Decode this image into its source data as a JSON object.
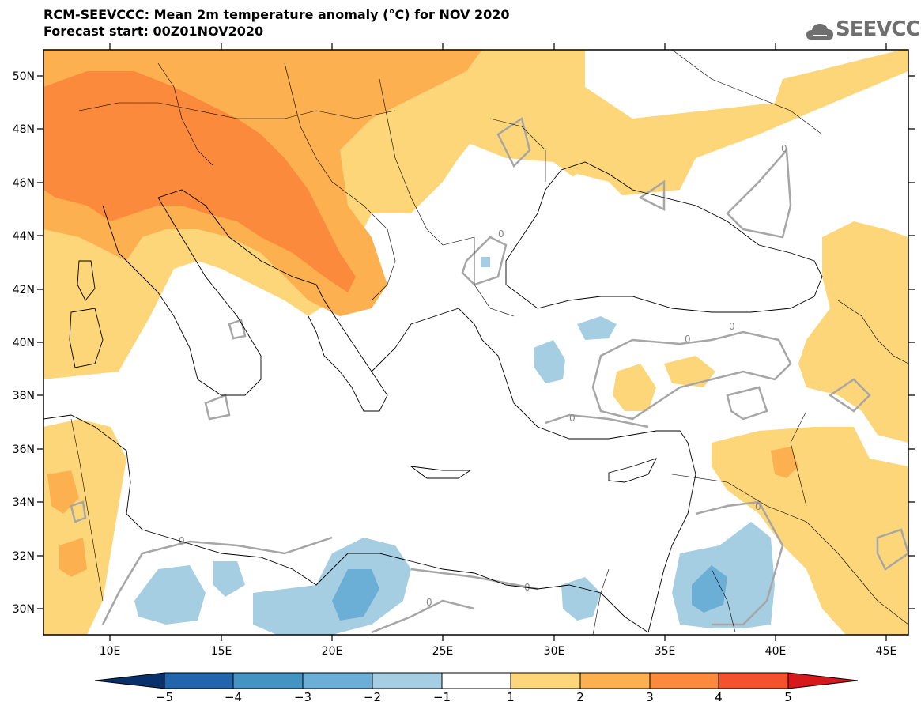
{
  "title": {
    "line1": "RCM-SEEVCCC: Mean 2m temperature anomaly (°C) for NOV 2020",
    "line2": "Forecast start: 00Z01NOV2020"
  },
  "logo": {
    "text": "SEEVCCC",
    "icon": "cloud-icon"
  },
  "map": {
    "lon_range": [
      7,
      46
    ],
    "lat_range": [
      29,
      51
    ],
    "lat_ticks": [
      "50N",
      "48N",
      "46N",
      "44N",
      "42N",
      "40N",
      "38N",
      "36N",
      "34N",
      "32N",
      "30N"
    ],
    "lon_ticks": [
      "10E",
      "15E",
      "20E",
      "25E",
      "30E",
      "35E",
      "40E",
      "45E"
    ],
    "contour_label": "0"
  },
  "colorbar": {
    "labels": [
      "−5",
      "−4",
      "−3",
      "−2",
      "−1",
      "1",
      "2",
      "3",
      "4",
      "5"
    ],
    "colors": [
      "#08306b",
      "#2166ac",
      "#4393c3",
      "#6baed6",
      "#a6cee3",
      "#ffffff",
      "#fdd67a",
      "#fdb04f",
      "#fb8a3c",
      "#f4512d",
      "#d7191c"
    ]
  },
  "colors": {
    "anom_1_2": "#fdd67a",
    "anom_2_3": "#fdb04f",
    "anom_3_4": "#fb8a3c",
    "anom_m1_m2": "#a6cee3",
    "anom_m2_m3": "#6baed6",
    "zero_contour": "#a6a6a6"
  }
}
